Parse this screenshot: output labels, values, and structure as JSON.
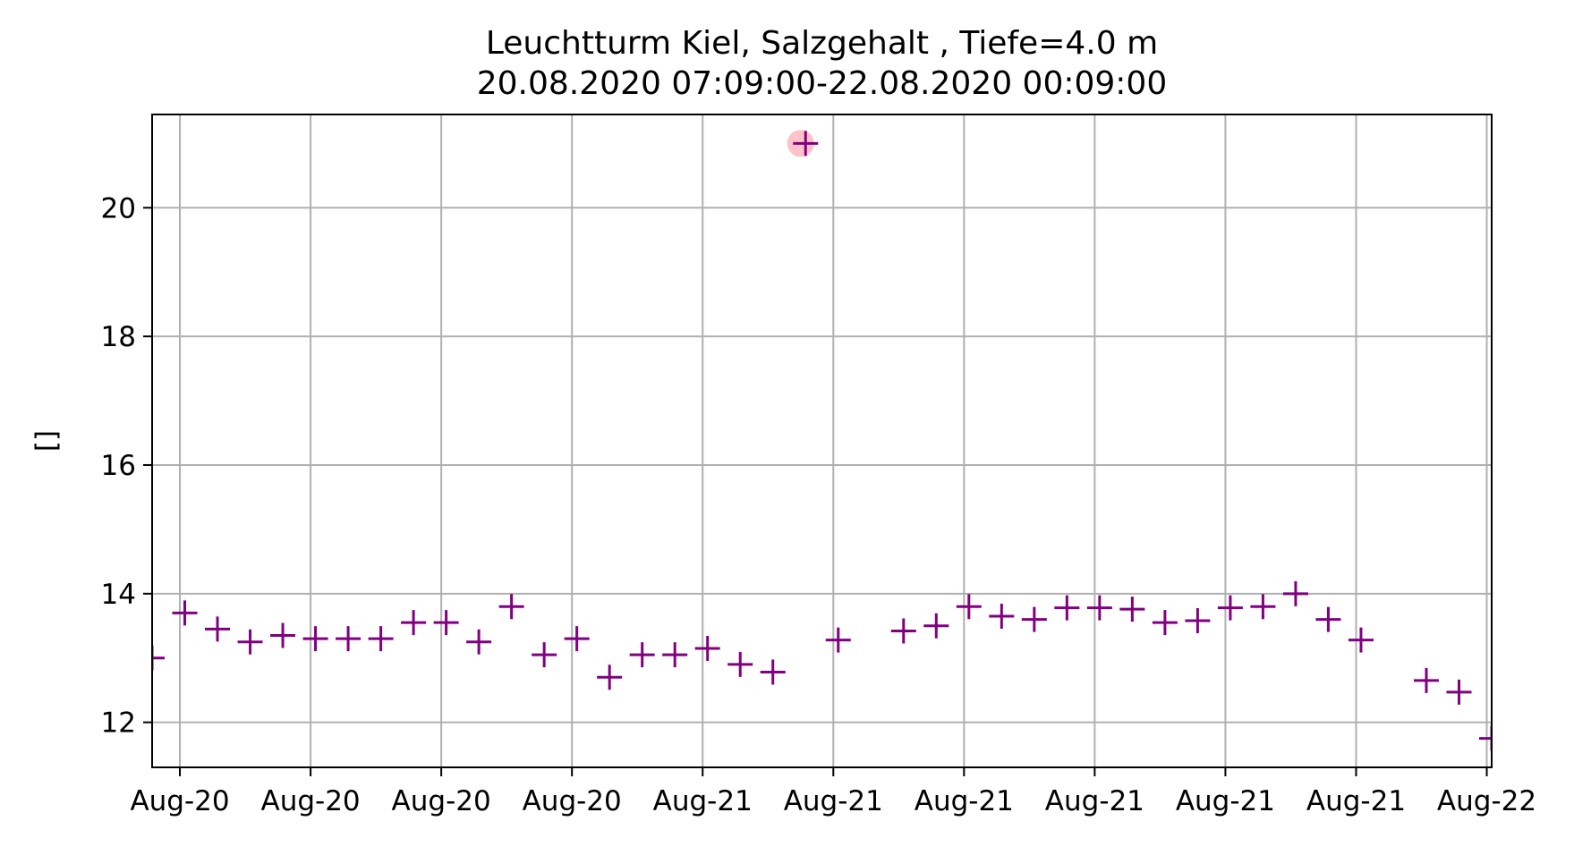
{
  "chart_data": {
    "type": "scatter",
    "title": "Leuchtturm Kiel, Salzgehalt , Tiefe=4.0 m",
    "subtitle": "20.08.2020 07:09:00-22.08.2020 00:09:00",
    "xlabel": "",
    "ylabel": "[]",
    "x_axis_kind": "datetime",
    "xlim": [
      "2020-08-20 07:09:00",
      "2020-08-22 00:09:00"
    ],
    "ylim": [
      11.3,
      21.45
    ],
    "grid": true,
    "legend": "none",
    "marker": "+",
    "colors": {
      "marker": "#800080",
      "highlight": "#ffb6c1",
      "grid": "#b0b0b0",
      "axes": "#000000"
    },
    "x_ticks": [
      {
        "x": "2020-08-20 08:00",
        "label": "Aug-20"
      },
      {
        "x": "2020-08-20 12:00",
        "label": "Aug-20"
      },
      {
        "x": "2020-08-20 16:00",
        "label": "Aug-20"
      },
      {
        "x": "2020-08-20 20:00",
        "label": "Aug-20"
      },
      {
        "x": "2020-08-21 00:00",
        "label": "Aug-21"
      },
      {
        "x": "2020-08-21 04:00",
        "label": "Aug-21"
      },
      {
        "x": "2020-08-21 08:00",
        "label": "Aug-21"
      },
      {
        "x": "2020-08-21 12:00",
        "label": "Aug-21"
      },
      {
        "x": "2020-08-21 16:00",
        "label": "Aug-21"
      },
      {
        "x": "2020-08-21 20:00",
        "label": "Aug-21"
      },
      {
        "x": "2020-08-22 00:00",
        "label": "Aug-22"
      }
    ],
    "y_ticks": [
      12,
      14,
      16,
      18,
      20
    ],
    "highlighted_points": [
      {
        "x": "2020-08-21 03:00",
        "y": 21.0
      }
    ],
    "series": [
      {
        "points": [
          {
            "x": "2020-08-20 07:09",
            "y": 13.0
          },
          {
            "x": "2020-08-20 08:09",
            "y": 13.7
          },
          {
            "x": "2020-08-20 09:09",
            "y": 13.45
          },
          {
            "x": "2020-08-20 10:09",
            "y": 13.25
          },
          {
            "x": "2020-08-20 11:09",
            "y": 13.35
          },
          {
            "x": "2020-08-20 12:09",
            "y": 13.3
          },
          {
            "x": "2020-08-20 13:09",
            "y": 13.3
          },
          {
            "x": "2020-08-20 14:09",
            "y": 13.3
          },
          {
            "x": "2020-08-20 15:09",
            "y": 13.55
          },
          {
            "x": "2020-08-20 16:09",
            "y": 13.55
          },
          {
            "x": "2020-08-20 17:09",
            "y": 13.25
          },
          {
            "x": "2020-08-20 18:09",
            "y": 13.8
          },
          {
            "x": "2020-08-20 19:09",
            "y": 13.05
          },
          {
            "x": "2020-08-20 20:09",
            "y": 13.3
          },
          {
            "x": "2020-08-20 21:09",
            "y": 12.7
          },
          {
            "x": "2020-08-20 22:09",
            "y": 13.05
          },
          {
            "x": "2020-08-20 23:09",
            "y": 13.05
          },
          {
            "x": "2020-08-21 00:09",
            "y": 13.15
          },
          {
            "x": "2020-08-21 01:09",
            "y": 12.9
          },
          {
            "x": "2020-08-21 02:09",
            "y": 12.78
          },
          {
            "x": "2020-08-21 03:09",
            "y": 21.0
          },
          {
            "x": "2020-08-21 04:09",
            "y": 13.28
          },
          {
            "x": "2020-08-21 06:09",
            "y": 13.42
          },
          {
            "x": "2020-08-21 07:09",
            "y": 13.5
          },
          {
            "x": "2020-08-21 08:09",
            "y": 13.8
          },
          {
            "x": "2020-08-21 09:09",
            "y": 13.65
          },
          {
            "x": "2020-08-21 10:09",
            "y": 13.6
          },
          {
            "x": "2020-08-21 11:09",
            "y": 13.78
          },
          {
            "x": "2020-08-21 12:09",
            "y": 13.78
          },
          {
            "x": "2020-08-21 13:09",
            "y": 13.76
          },
          {
            "x": "2020-08-21 14:09",
            "y": 13.55
          },
          {
            "x": "2020-08-21 15:09",
            "y": 13.58
          },
          {
            "x": "2020-08-21 16:09",
            "y": 13.78
          },
          {
            "x": "2020-08-21 17:09",
            "y": 13.8
          },
          {
            "x": "2020-08-21 18:09",
            "y": 14.0
          },
          {
            "x": "2020-08-21 19:09",
            "y": 13.6
          },
          {
            "x": "2020-08-21 20:09",
            "y": 13.28
          },
          {
            "x": "2020-08-21 22:09",
            "y": 12.65
          },
          {
            "x": "2020-08-21 23:09",
            "y": 12.47
          },
          {
            "x": "2020-08-22 00:09",
            "y": 11.75
          }
        ]
      }
    ]
  }
}
